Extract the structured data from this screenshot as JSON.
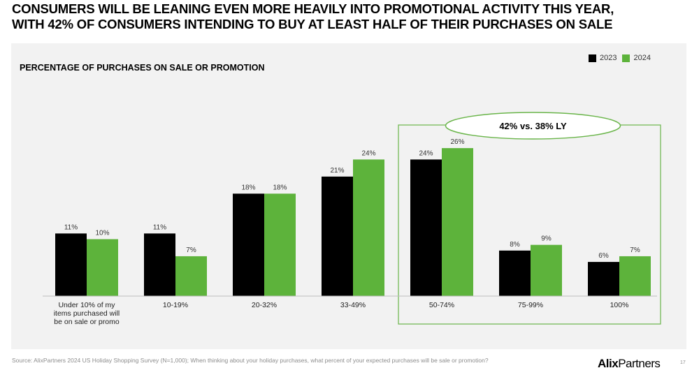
{
  "headline": {
    "line1": "CONSUMERS WILL BE LEANING EVEN MORE HEAVILY INTO PROMOTIONAL ACTIVITY THIS YEAR,",
    "line2": "WITH 42% OF CONSUMERS INTENDING TO BUY AT LEAST HALF OF THEIR PURCHASES ON SALE"
  },
  "colors": {
    "s2023": "#000000",
    "s2024": "#5db33b",
    "panel": "#f2f2f2",
    "highlight": "#6ab54a"
  },
  "chart_data": {
    "type": "bar",
    "title": "PERCENTAGE OF PURCHASES ON SALE OR PROMOTION",
    "categories": [
      [
        "Under 10% of my",
        "items purchased will",
        "be on sale or promo"
      ],
      [
        "10-19%"
      ],
      [
        "20-32%"
      ],
      [
        "33-49%"
      ],
      [
        "50-74%"
      ],
      [
        "75-99%"
      ],
      [
        "100%"
      ]
    ],
    "series": [
      {
        "name": "2023",
        "values": [
          11,
          11,
          18,
          21,
          24,
          8,
          6
        ],
        "labels": [
          "11%",
          "11%",
          "18%",
          "21%",
          "24%",
          "8%",
          "6%"
        ]
      },
      {
        "name": "2024",
        "values": [
          10,
          7,
          18,
          24,
          26,
          9,
          7
        ],
        "labels": [
          "10%",
          "7%",
          "18%",
          "24%",
          "26%",
          "9%",
          "7%"
        ]
      }
    ],
    "ylim": [
      0,
      30
    ],
    "legend": "top-right",
    "grid": false,
    "annotation": {
      "text": "42% vs. 38% LY",
      "categories": [
        4,
        5,
        6
      ]
    }
  },
  "source": "Source: AlixPartners 2024 US Holiday Shopping Survey (N=1,000); When thinking about your holiday purchases, what percent of your expected purchases will be sale or promotion?",
  "brand": {
    "bold": "Alix",
    "light": "Partners"
  },
  "page_number": "17"
}
